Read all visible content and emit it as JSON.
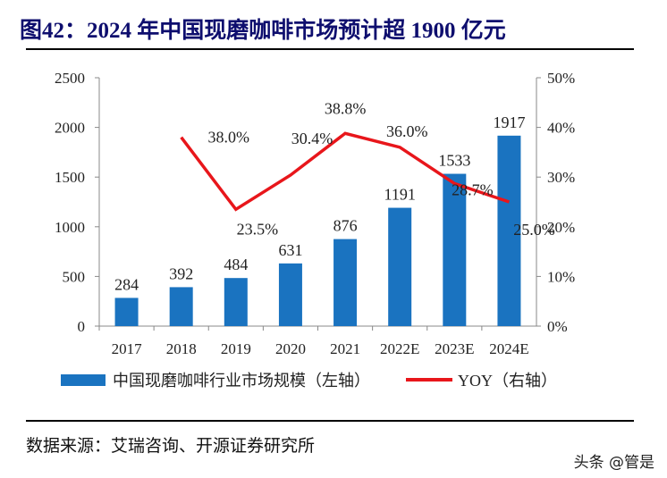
{
  "title": "图42：2024 年中国现磨咖啡市场预计超 1900 亿元",
  "chart_data": {
    "type": "bar+line",
    "categories": [
      "2017",
      "2018",
      "2019",
      "2020",
      "2021",
      "2022E",
      "2023E",
      "2024E"
    ],
    "series": [
      {
        "name": "中国现磨咖啡行业市场规模（左轴）",
        "type": "bar",
        "axis": "left",
        "color": "#1a73c0",
        "values": [
          284,
          392,
          484,
          631,
          876,
          1191,
          1533,
          1917
        ],
        "labels": [
          "284",
          "392",
          "484",
          "631",
          "876",
          "1191",
          "1533",
          "1917"
        ]
      },
      {
        "name": "YOY（右轴）",
        "type": "line",
        "axis": "right",
        "color": "#e8161b",
        "values": [
          null,
          38.0,
          23.5,
          30.4,
          38.8,
          36.0,
          28.7,
          25.0
        ],
        "labels": [
          "",
          "38.0%",
          "23.5%",
          "30.4%",
          "38.8%",
          "36.0%",
          "28.7%",
          "25.0%"
        ]
      }
    ],
    "left_axis": {
      "ylim": [
        0,
        2500
      ],
      "ticks": [
        "0",
        "500",
        "1000",
        "1500",
        "2000",
        "2500"
      ]
    },
    "right_axis": {
      "ylim": [
        0,
        50
      ],
      "ticks": [
        "0%",
        "10%",
        "20%",
        "30%",
        "40%",
        "50%"
      ]
    },
    "grid": false,
    "legend_position": "bottom"
  },
  "legend": {
    "bar_label": "中国现磨咖啡行业市场规模（左轴）",
    "line_label": "YOY（右轴）"
  },
  "source": "数据来源：艾瑞咨询、开源证券研究所",
  "watermark": "头条 @管是"
}
